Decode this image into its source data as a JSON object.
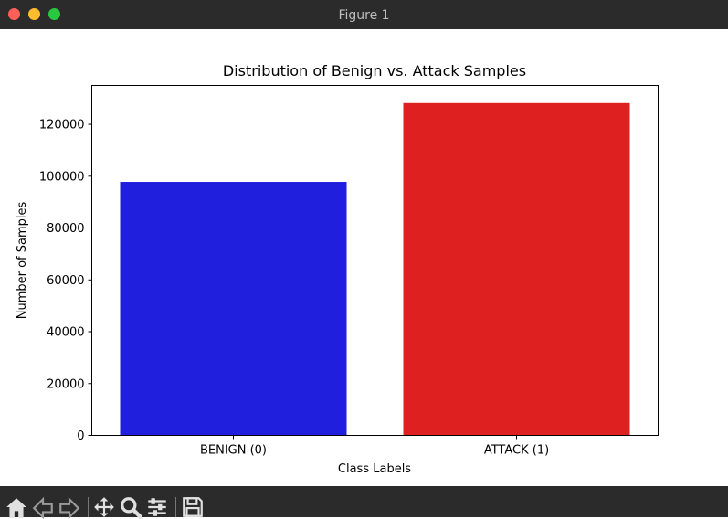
{
  "window": {
    "title": "Figure 1"
  },
  "colors": {
    "benign": "#1f1fdd",
    "attack": "#df2020"
  },
  "toolbar": {
    "icons": [
      "home-icon",
      "back-icon",
      "forward-icon",
      "pan-icon",
      "zoom-icon",
      "configure-subplots-icon",
      "save-icon"
    ]
  },
  "chart_data": {
    "type": "bar",
    "title": "Distribution of Benign vs. Attack Samples",
    "xlabel": "Class Labels",
    "ylabel": "Number of Samples",
    "categories": [
      "BENIGN (0)",
      "ATTACK (1)"
    ],
    "values": [
      97800,
      128200
    ],
    "colors": [
      "#1f1fdd",
      "#df2020"
    ],
    "ylim": [
      0,
      135000
    ],
    "yticks": [
      0,
      20000,
      40000,
      60000,
      80000,
      100000,
      120000
    ],
    "grid": false
  }
}
